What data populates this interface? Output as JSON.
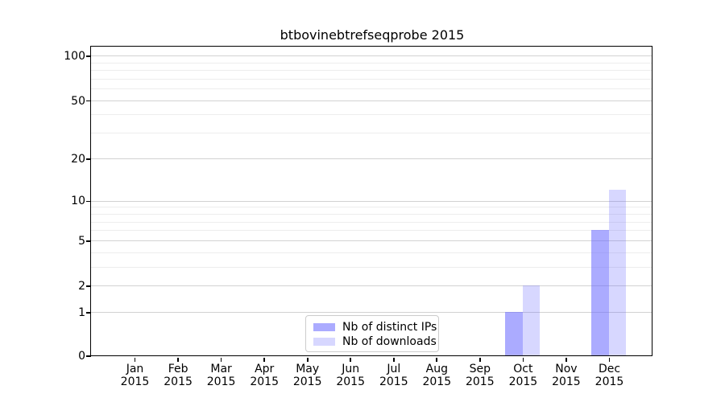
{
  "chart_data": {
    "type": "bar",
    "title": "btbovinebtrefseqprobe 2015",
    "categories": [
      "Jan",
      "Feb",
      "Mar",
      "Apr",
      "May",
      "Jun",
      "Jul",
      "Aug",
      "Sep",
      "Oct",
      "Nov",
      "Dec"
    ],
    "x_tick_second_line": "2015",
    "series": [
      {
        "name": "Nb of distinct IPs",
        "color": "rgba(102,102,255,0.55)",
        "values": [
          0,
          0,
          0,
          0,
          0,
          0,
          0,
          0,
          0,
          1,
          0,
          6
        ]
      },
      {
        "name": "Nb of downloads",
        "color": "rgba(102,102,255,0.26)",
        "values": [
          0,
          0,
          0,
          0,
          0,
          0,
          0,
          0,
          0,
          2,
          0,
          12
        ]
      }
    ],
    "y_axis": {
      "scale": "log1p",
      "ticks": [
        0,
        1,
        2,
        5,
        10,
        20,
        50,
        100
      ],
      "minor_gridlines": [
        3,
        4,
        6,
        7,
        8,
        9,
        30,
        40,
        60,
        70,
        80,
        90
      ],
      "ylim": [
        0,
        113
      ]
    },
    "grid": true,
    "legend_position": "lower center"
  },
  "colors": {
    "major_grid": "#d2d2d2",
    "minor_grid": "#ededed",
    "spine": "#000000",
    "text": "#000000"
  }
}
